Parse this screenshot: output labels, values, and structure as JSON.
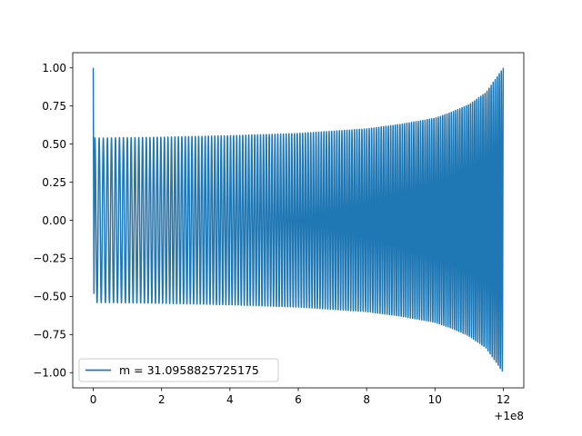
{
  "chart_data": {
    "type": "line",
    "legend_position": "lower-left",
    "grid": false,
    "x_offset_text": "+1e8",
    "xlim": [
      -0.6,
      12.6
    ],
    "ylim": [
      -1.1,
      1.1
    ],
    "x_ticks": [
      0,
      2,
      4,
      6,
      8,
      10,
      12
    ],
    "x_tick_labels": [
      "0",
      "2",
      "4",
      "6",
      "8",
      "10",
      "12"
    ],
    "y_ticks": [
      1.0,
      0.75,
      0.5,
      0.25,
      0.0,
      -0.25,
      -0.5,
      -0.75,
      -1.0
    ],
    "y_tick_labels": [
      "1.00",
      "0.75",
      "0.50",
      "0.25",
      "0.00",
      "−0.25",
      "−0.50",
      "−0.75",
      "−1.00"
    ],
    "series": [
      {
        "name": "m = 31.0958825725175",
        "color": "#1f77b4",
        "x_range": [
          0,
          12
        ],
        "start_value": 1.0,
        "initial_dip": -0.48,
        "envelope": {
          "x": [
            0.2,
            2,
            4,
            6,
            8,
            9,
            10,
            10.5,
            11,
            11.5,
            12
          ],
          "amplitude": [
            0.54,
            0.545,
            0.555,
            0.57,
            0.6,
            0.63,
            0.67,
            0.71,
            0.76,
            0.84,
            1.0
          ]
        },
        "approx_oscillation_cycles": 150
      }
    ]
  }
}
